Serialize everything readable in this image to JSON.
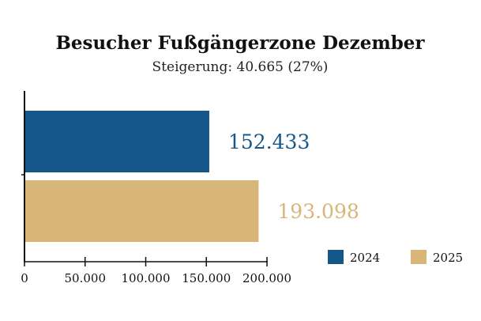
{
  "chart_data": {
    "type": "bar",
    "orientation": "horizontal",
    "title": "Besucher Fußgängerzone Dezember",
    "subtitle": "Steigerung: 40.665 (27%)",
    "series": [
      {
        "name": "2024",
        "value": 152433,
        "label": "152.433",
        "color": "#16578a"
      },
      {
        "name": "2025",
        "value": 193098,
        "label": "193.098",
        "color": "#d8b67a"
      }
    ],
    "xlim": [
      0,
      200000
    ],
    "xticks": [
      0,
      50000,
      100000,
      150000,
      200000
    ],
    "xtick_labels": [
      "0",
      "50.000",
      "100.000",
      "150.000",
      "200.000"
    ],
    "grid": false,
    "legend_position": "bottom-right"
  }
}
